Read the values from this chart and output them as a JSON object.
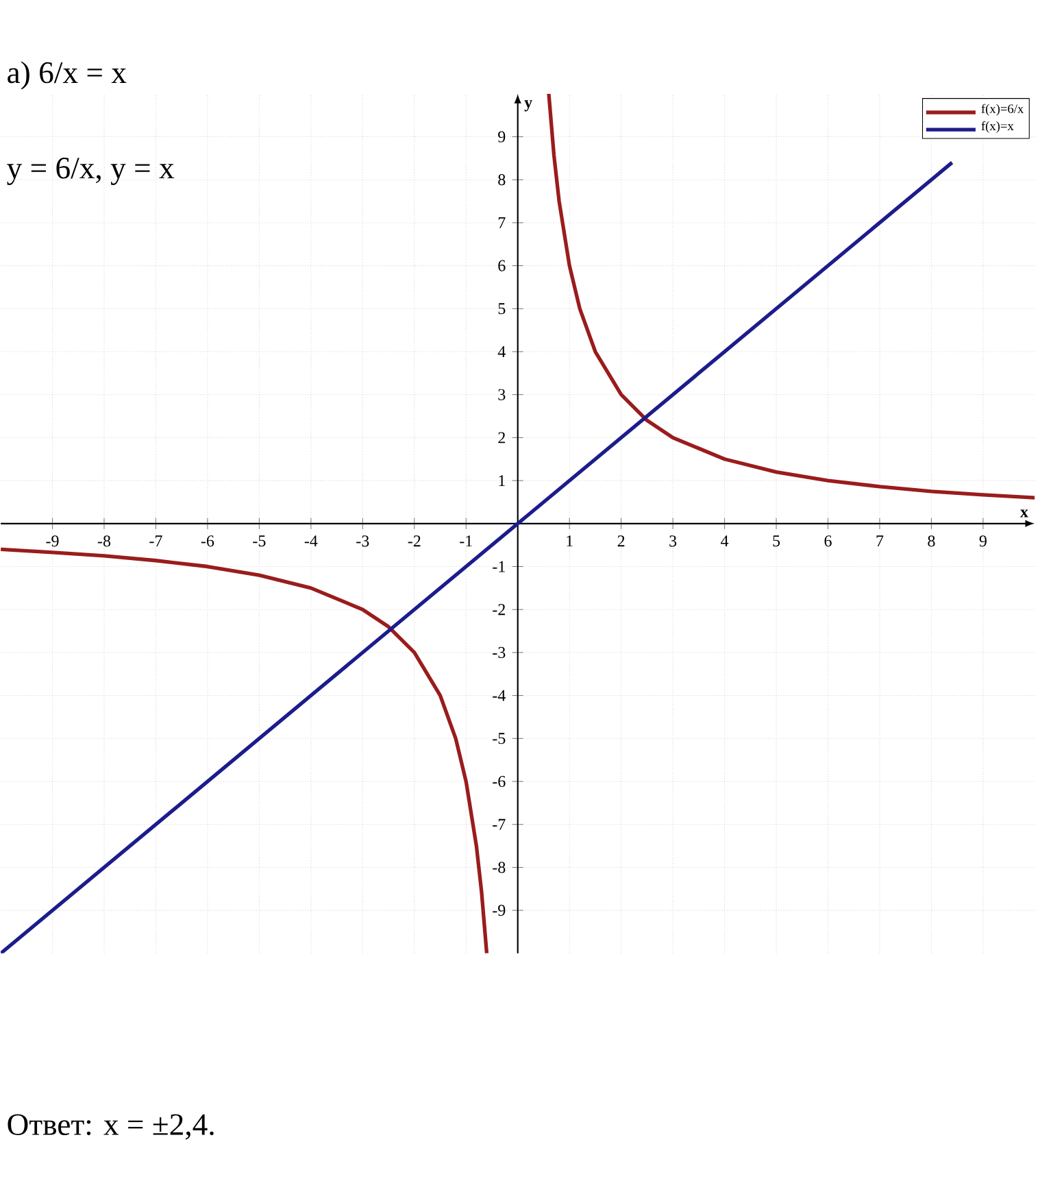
{
  "chart_data": {
    "type": "line",
    "annotations": [
      "а) 6/x = x",
      "y = 6/x,        y = x",
      "Ответ: x = ±2,4."
    ],
    "xlabel": "x",
    "ylabel": "y",
    "xlim": [
      -10,
      10
    ],
    "ylim": [
      -10,
      10
    ],
    "xticks": [
      -9,
      -8,
      -7,
      -6,
      -5,
      -4,
      -3,
      -2,
      -1,
      1,
      2,
      3,
      4,
      5,
      6,
      7,
      8,
      9
    ],
    "yticks": [
      -9,
      -8,
      -7,
      -6,
      -5,
      -4,
      -3,
      -2,
      -1,
      1,
      2,
      3,
      4,
      5,
      6,
      7,
      8,
      9
    ],
    "grid": true,
    "legend": "top right",
    "series": [
      {
        "name": "f(x)=6/x",
        "color": "#9a1c1c",
        "x": [
          -10,
          -9,
          -8,
          -7,
          -6,
          -5,
          -4,
          -3,
          -2.5,
          -2,
          -1.5,
          -1.2,
          -1,
          -0.8,
          -0.7,
          -0.6,
          0,
          0.6,
          0.7,
          0.8,
          1,
          1.2,
          1.5,
          2,
          2.5,
          3,
          4,
          5,
          6,
          7,
          8,
          9,
          10
        ],
        "values": [
          -0.6,
          -0.67,
          -0.75,
          -0.86,
          -1,
          -1.2,
          -1.5,
          -2,
          -2.4,
          -3,
          -4,
          -5,
          -6,
          -7.5,
          -8.57,
          -10,
          null,
          10,
          8.57,
          7.5,
          6,
          5,
          4,
          3,
          2.4,
          2,
          1.5,
          1.2,
          1,
          0.86,
          0.75,
          0.67,
          0.6
        ]
      },
      {
        "name": "f(x)=x",
        "color": "#1c1c8c",
        "x": [
          -10,
          8.4
        ],
        "values": [
          -10,
          8.4
        ]
      }
    ]
  }
}
